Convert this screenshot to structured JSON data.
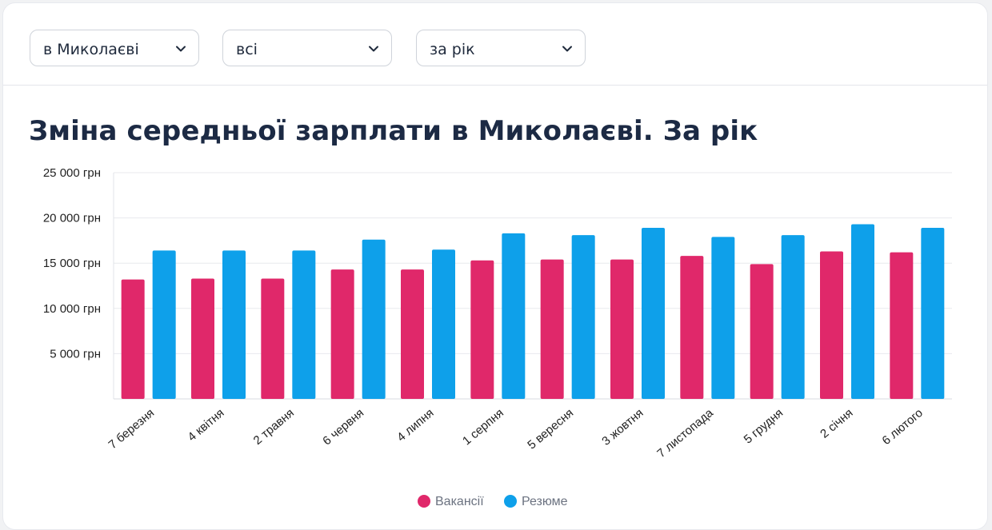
{
  "filters": {
    "city": "в Миколаєві",
    "category": "всі",
    "period": "за рік"
  },
  "title": "Зміна середньої зарплати в Миколаєві. За рік",
  "colors": {
    "vacancies": "#e0286a",
    "resumes": "#0ea0ea"
  },
  "chart_data": {
    "type": "bar",
    "categories": [
      "7 березня",
      "4 квітня",
      "2 травня",
      "6 червня",
      "4 липня",
      "1 серпня",
      "5 вересня",
      "3 жовтня",
      "7 листопада",
      "5 грудня",
      "2 січня",
      "6 лютого"
    ],
    "series": [
      {
        "name": "Вакансії",
        "values": [
          13200,
          13300,
          13300,
          14300,
          14300,
          15300,
          15400,
          15400,
          15800,
          14900,
          16300,
          16200
        ]
      },
      {
        "name": "Резюме",
        "values": [
          16400,
          16400,
          16400,
          17600,
          16500,
          18300,
          18100,
          18900,
          17900,
          18100,
          19300,
          18900
        ]
      }
    ],
    "ylim": [
      0,
      25000
    ],
    "yticks": [
      5000,
      10000,
      15000,
      20000,
      25000
    ],
    "ytick_labels": [
      "5 000 грн",
      "10 000 грн",
      "15 000 грн",
      "20 000 грн",
      "25 000 грн"
    ],
    "grid": true,
    "legend": "bottom-center"
  }
}
